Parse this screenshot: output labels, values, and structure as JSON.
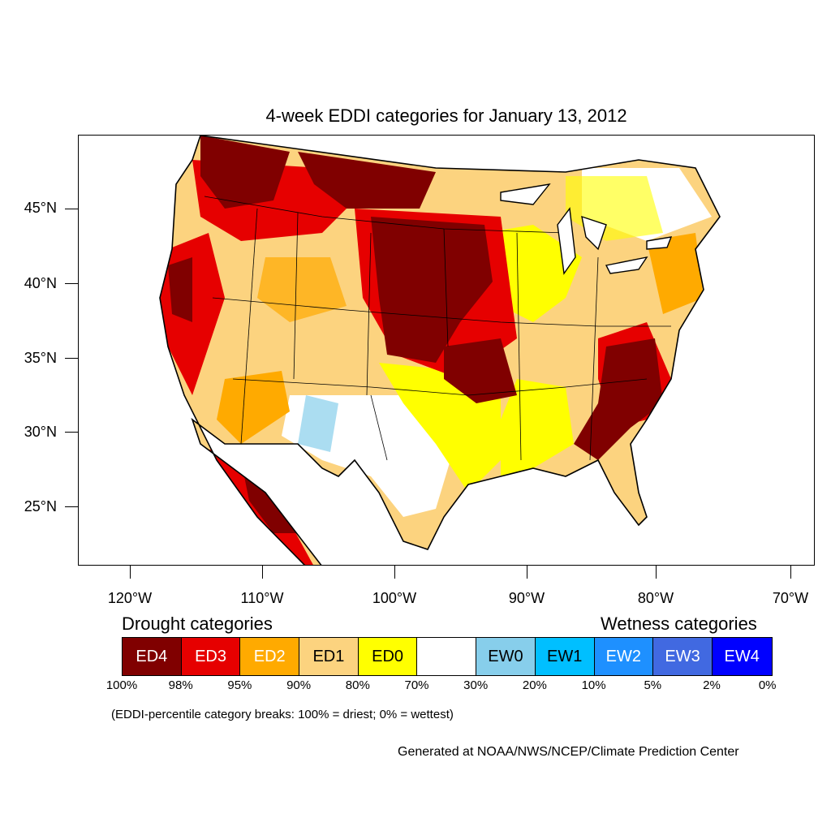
{
  "title": "4-week EDDI categories for January 13, 2012",
  "y_ticks": [
    "45°N",
    "40°N",
    "35°N",
    "30°N",
    "25°N"
  ],
  "x_ticks": [
    "120°W",
    "110°W",
    "100°W",
    "90°W",
    "80°W",
    "70°W"
  ],
  "legend": {
    "drought_heading": "Drought categories",
    "wetness_heading": "Wetness categories",
    "categories": [
      {
        "label": "ED4",
        "color": "#800000",
        "text_color": "#ffffff"
      },
      {
        "label": "ED3",
        "color": "#e60000",
        "text_color": "#ffffff"
      },
      {
        "label": "ED2",
        "color": "#ffaa00",
        "text_color": "#ffffff"
      },
      {
        "label": "ED1",
        "color": "#fcd37f",
        "text_color": "#000000"
      },
      {
        "label": "ED0",
        "color": "#ffff00",
        "text_color": "#000000"
      },
      {
        "label": "",
        "color": "#ffffff",
        "text_color": "#000000"
      },
      {
        "label": "EW0",
        "color": "#87ceeb",
        "text_color": "#000000"
      },
      {
        "label": "EW1",
        "color": "#00bfff",
        "text_color": "#000000"
      },
      {
        "label": "EW2",
        "color": "#1e90ff",
        "text_color": "#ffffff"
      },
      {
        "label": "EW3",
        "color": "#4169e1",
        "text_color": "#ffffff"
      },
      {
        "label": "EW4",
        "color": "#0000ff",
        "text_color": "#ffffff"
      }
    ],
    "breaks": [
      "100%",
      "98%",
      "95%",
      "90%",
      "80%",
      "70%",
      "30%",
      "20%",
      "10%",
      "5%",
      "2%",
      "0%"
    ]
  },
  "note": "(EDDI-percentile category breaks: 100% = driest; 0% = wettest)",
  "credit": "Generated at NOAA/NWS/NCEP/Climate Prediction Center"
}
